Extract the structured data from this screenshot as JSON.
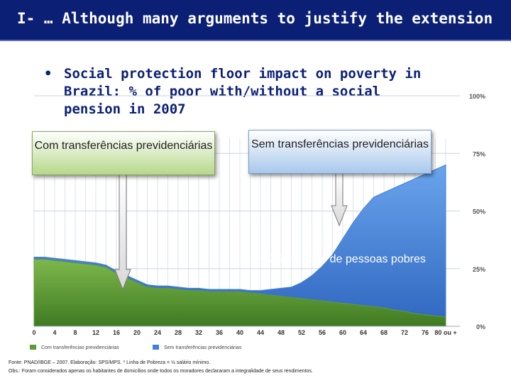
{
  "header": {
    "title": "I- … Although many arguments to justify the extension"
  },
  "bullet": {
    "marker": "•",
    "text": "Social protection floor impact on poverty in Brazil: % of poor with/without a social pension in 2007"
  },
  "callouts": {
    "with": "Com transferências previdenciárias",
    "without": "Sem transferências previdenciárias",
    "difference": "+22,2 milhões de pessoas pobres"
  },
  "colors": {
    "with": "#5f9a38",
    "without": "#3f7fd8",
    "title_bg": "#0b1f75"
  },
  "chart_data": {
    "type": "area",
    "x_tick_labels": [
      "0",
      "4",
      "8",
      "12",
      "16",
      "20",
      "24",
      "28",
      "32",
      "36",
      "40",
      "44",
      "48",
      "52",
      "56",
      "60",
      "64",
      "68",
      "72",
      "76",
      "80 ou +"
    ],
    "xlabel": "",
    "ylabel": "",
    "y_tick_labels": [
      "100%",
      "75%",
      "50%",
      "25%",
      "0%"
    ],
    "ylim": [
      0,
      100
    ],
    "grid": true,
    "legend_position": "bottom-left",
    "series": [
      {
        "name": "Com transferências previdenciárias",
        "color": "#5f9a38",
        "x": [
          0,
          2,
          4,
          6,
          8,
          10,
          12,
          14,
          16,
          18,
          20,
          22,
          24,
          26,
          28,
          30,
          32,
          34,
          36,
          38,
          40,
          42,
          44,
          46,
          48,
          50,
          52,
          54,
          56,
          58,
          60,
          62,
          64,
          66,
          68,
          70,
          72,
          74,
          76,
          78,
          80
        ],
        "values": [
          29,
          29,
          28.5,
          28,
          27.5,
          27,
          26.5,
          25.5,
          23,
          21,
          19,
          17,
          16.5,
          16.5,
          16,
          15.5,
          15.5,
          15,
          15,
          15,
          15,
          14.5,
          14,
          13.5,
          13,
          12.5,
          12,
          11.5,
          11,
          10.5,
          10,
          9.5,
          9,
          8.5,
          8,
          7,
          6.5,
          5.5,
          5,
          4.5,
          4
        ]
      },
      {
        "name": "Sem transferências previdenciárias",
        "color": "#3f7fd8",
        "x": [
          0,
          2,
          4,
          6,
          8,
          10,
          12,
          14,
          16,
          18,
          20,
          22,
          24,
          26,
          28,
          30,
          32,
          34,
          36,
          38,
          40,
          42,
          44,
          46,
          48,
          50,
          52,
          54,
          56,
          58,
          60,
          62,
          64,
          66,
          68,
          70,
          72,
          74,
          76,
          78,
          80
        ],
        "values": [
          30,
          30,
          29.5,
          29,
          28.5,
          28,
          27.5,
          26.5,
          24,
          22,
          20,
          18,
          17.5,
          17.5,
          17,
          16.5,
          16.5,
          16,
          16,
          16,
          16,
          15.5,
          15.5,
          16,
          16.5,
          17,
          19,
          22,
          26,
          31,
          38,
          45,
          51,
          56,
          58,
          60,
          62,
          64,
          66,
          68,
          70
        ]
      }
    ]
  },
  "footer": {
    "source": "Fonte: PNAD/IBGE – 2007. Elaboração: SPS/MPS. * Linha de Pobreza = ½ salário mínimo.",
    "note": "Obs.: Foram considerados apenas os habitantes de domicílios onde todos os moradores declararam a integralidade de seus rendimentos."
  }
}
